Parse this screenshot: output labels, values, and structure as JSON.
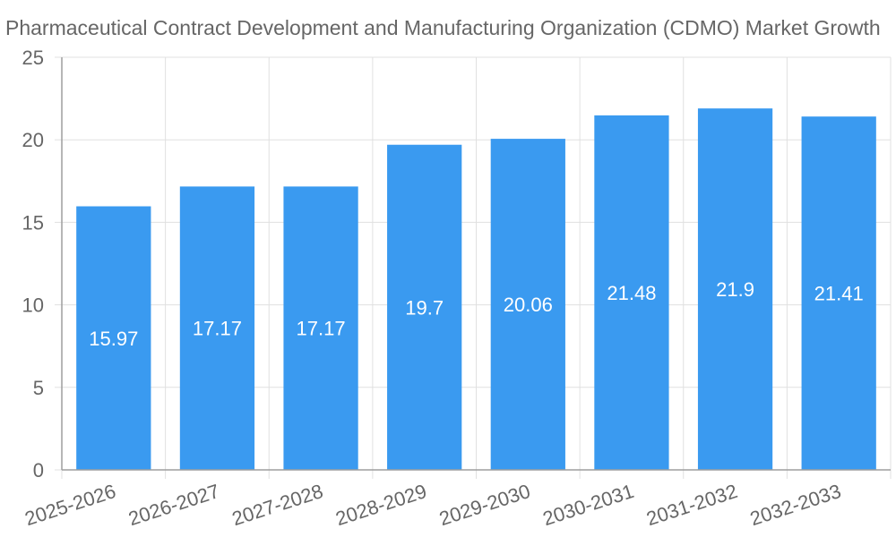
{
  "chart_data": {
    "type": "bar",
    "title": "Pharmaceutical Contract Development and Manufacturing Organization (CDMO) Market Growth",
    "categories": [
      "2025-2026",
      "2026-2027",
      "2027-2028",
      "2028-2029",
      "2029-2030",
      "2030-2031",
      "2031-2032",
      "2032-2033"
    ],
    "values": [
      15.97,
      17.17,
      17.17,
      19.7,
      20.06,
      21.48,
      21.9,
      21.41
    ],
    "data_labels": [
      "15.97",
      "17.17",
      "17.17",
      "19.7",
      "20.06",
      "21.48",
      "21.9",
      "21.41"
    ],
    "ylim": [
      0,
      25
    ],
    "yticks": [
      0,
      5,
      10,
      15,
      20,
      25
    ],
    "ytick_labels": [
      "0",
      "5",
      "10",
      "15",
      "20",
      "25"
    ],
    "grid": true,
    "bar_color": "#3a9af0",
    "grid_color": "#e0e0e0",
    "text_color": "#666666"
  }
}
